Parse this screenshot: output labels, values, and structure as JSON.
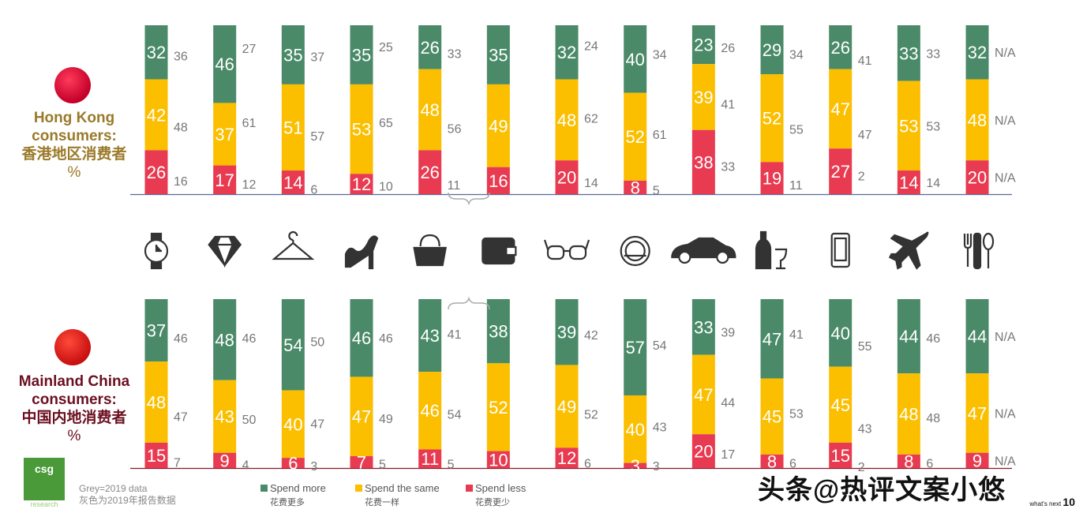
{
  "chart_data": {
    "type": "bar",
    "stacked": true,
    "categories": [
      "watch",
      "jewellery",
      "clothing",
      "shoes",
      "handbag",
      "wallet",
      "eyewear",
      "cosmetics",
      "car",
      "wine",
      "electronics",
      "travel",
      "dining"
    ],
    "icons": [
      "watch-icon",
      "diamond-icon",
      "hanger-icon",
      "high-heel-icon",
      "handbag-icon",
      "wallet-icon",
      "glasses-icon",
      "compact-mirror-icon",
      "car-icon",
      "wine-icon",
      "phone-icon",
      "airplane-icon",
      "cutlery-icon"
    ],
    "colors": {
      "more": "#4a8a68",
      "same": "#fbbf00",
      "less": "#e83a50",
      "grey": "#777777"
    },
    "panels": [
      {
        "label_en": "Hong Kong consumers:",
        "label_cn": "香港地区消费者",
        "unit": "%",
        "axis_color": "#5a6a9a",
        "series": [
          {
            "name": "Spend more",
            "values": [
              32,
              46,
              35,
              35,
              26,
              35,
              32,
              40,
              23,
              29,
              26,
              33,
              32
            ]
          },
          {
            "name": "Spend the same",
            "values": [
              42,
              37,
              51,
              53,
              48,
              49,
              48,
              52,
              39,
              52,
              47,
              53,
              48
            ]
          },
          {
            "name": "Spend less",
            "values": [
              26,
              17,
              14,
              12,
              26,
              16,
              20,
              8,
              38,
              19,
              27,
              14,
              20
            ]
          }
        ],
        "grey_2019": [
          [
            36,
            48,
            16
          ],
          [
            27,
            61,
            12
          ],
          [
            37,
            57,
            6
          ],
          [
            25,
            65,
            10
          ],
          [
            33,
            56,
            11
          ],
          null,
          [
            24,
            62,
            14
          ],
          [
            34,
            61,
            5
          ],
          [
            26,
            41,
            33
          ],
          [
            34,
            55,
            11
          ],
          [
            41,
            47,
            2
          ],
          [
            33,
            53,
            14
          ],
          [
            "N/A",
            "N/A",
            "N/A"
          ]
        ]
      },
      {
        "label_en": "Mainland China consumers:",
        "label_cn": "中国内地消费者",
        "unit": "%",
        "axis_color": "#8a1a2a",
        "series": [
          {
            "name": "Spend more",
            "values": [
              37,
              48,
              54,
              46,
              43,
              38,
              39,
              57,
              33,
              47,
              40,
              44,
              44
            ]
          },
          {
            "name": "Spend the same",
            "values": [
              48,
              43,
              40,
              47,
              46,
              52,
              49,
              40,
              47,
              45,
              45,
              48,
              47
            ]
          },
          {
            "name": "Spend less",
            "values": [
              15,
              9,
              6,
              7,
              11,
              10,
              12,
              3,
              20,
              8,
              15,
              8,
              9
            ]
          }
        ],
        "grey_2019": [
          [
            46,
            47,
            7
          ],
          [
            46,
            50,
            4
          ],
          [
            50,
            47,
            3
          ],
          [
            46,
            49,
            5
          ],
          [
            41,
            54,
            5
          ],
          null,
          [
            42,
            52,
            6
          ],
          [
            54,
            43,
            3
          ],
          [
            39,
            44,
            17
          ],
          [
            41,
            53,
            6
          ],
          [
            55,
            43,
            2
          ],
          [
            46,
            48,
            6
          ],
          [
            "N/A",
            "N/A",
            "N/A"
          ]
        ]
      }
    ],
    "legend": [
      {
        "en": "Spend more",
        "cn": "花费更多"
      },
      {
        "en": "Spend the same",
        "cn": "花费一样"
      },
      {
        "en": "Spend less",
        "cn": "花费更少"
      }
    ]
  },
  "note": {
    "en": "Grey=2019 data",
    "cn": "灰色为2019年报告数据"
  },
  "logo": {
    "text": "csg",
    "sub": "research"
  },
  "watermark": "头条@热评文案小悠",
  "footer": {
    "tagline": "what's next",
    "page": "10"
  }
}
